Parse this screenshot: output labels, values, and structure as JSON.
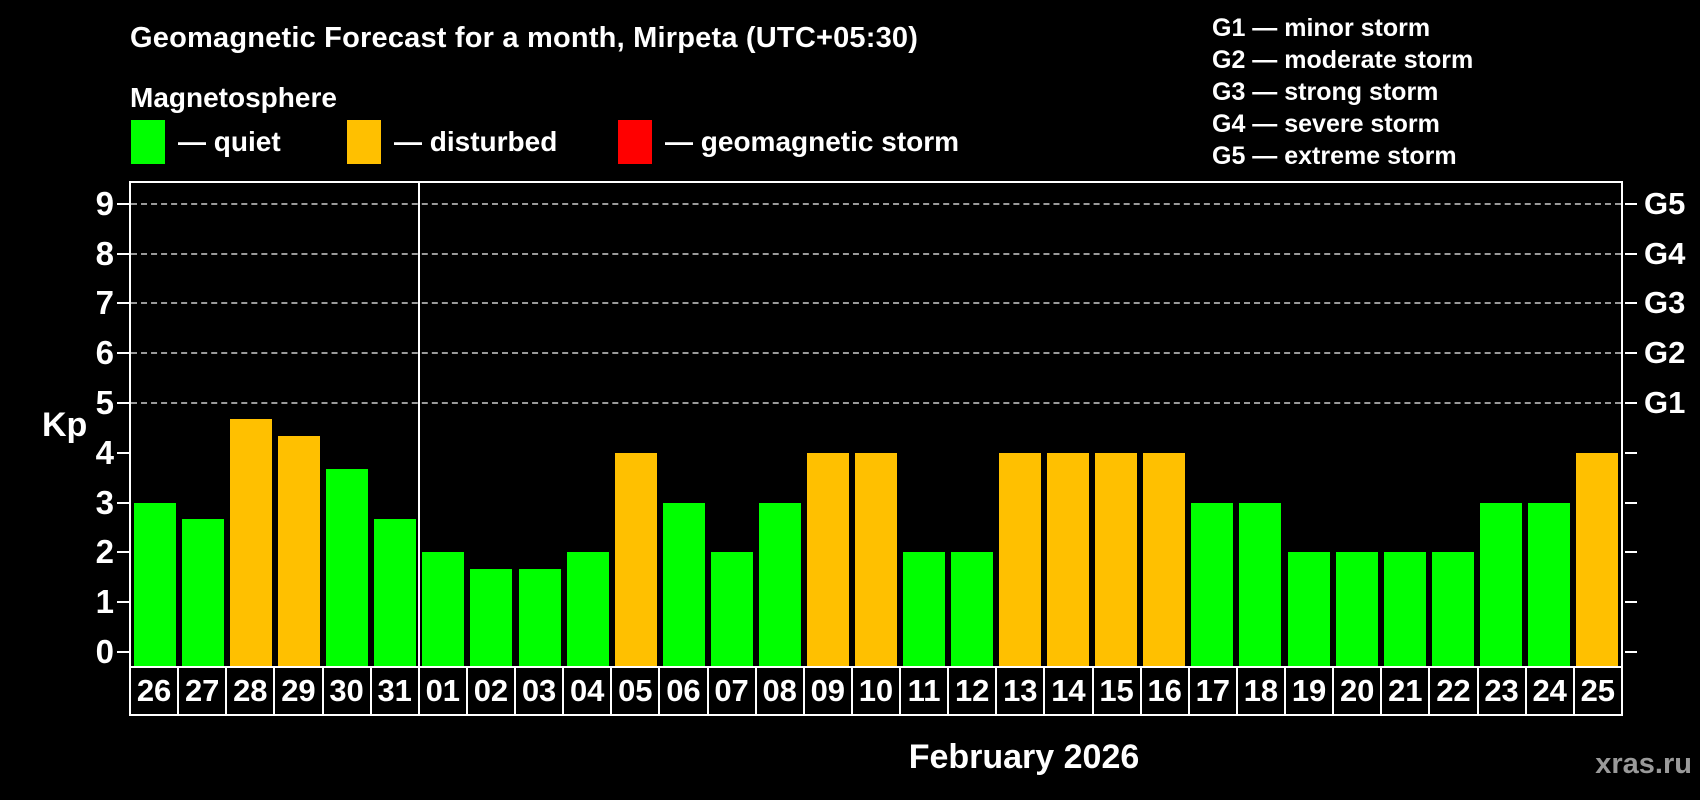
{
  "chart_data": {
    "type": "bar",
    "title": "Geomagnetic Forecast for a month, Mirpeta (UTC+05:30)",
    "subtitle": "Magnetosphere",
    "ylabel": "Kp",
    "xlabel": "February 2026",
    "watermark": "xras.ru",
    "ylim": [
      0,
      9.5
    ],
    "yticks": [
      0,
      1,
      2,
      3,
      4,
      5,
      6,
      7,
      8,
      9
    ],
    "grid": "horizontal dashed lines at Kp 5-9 only",
    "legend_position": "top-left",
    "legend": [
      {
        "status": "quiet",
        "label": "— quiet",
        "color": "#00ff00"
      },
      {
        "status": "disturbed",
        "label": "— disturbed",
        "color": "#ffc000"
      },
      {
        "status": "storm",
        "label": "— geomagnetic storm",
        "color": "#ff0000"
      }
    ],
    "g_scale_legend": [
      "G1 — minor storm",
      "G2 — moderate storm",
      "G3 — strong storm",
      "G4 — severe storm",
      "G5 — extreme storm"
    ],
    "right_axis_labels": [
      {
        "label": "G1",
        "kp": 5
      },
      {
        "label": "G2",
        "kp": 6
      },
      {
        "label": "G3",
        "kp": 7
      },
      {
        "label": "G4",
        "kp": 8
      },
      {
        "label": "G5",
        "kp": 9
      }
    ],
    "month_separator_after_category": "31",
    "categories": [
      "26",
      "27",
      "28",
      "29",
      "30",
      "31",
      "01",
      "02",
      "03",
      "04",
      "05",
      "06",
      "07",
      "08",
      "09",
      "10",
      "11",
      "12",
      "13",
      "14",
      "15",
      "16",
      "17",
      "18",
      "19",
      "20",
      "21",
      "22",
      "23",
      "24",
      "25"
    ],
    "series": [
      {
        "name": "Kp forecast",
        "values": [
          3.0,
          2.67,
          4.67,
          4.33,
          3.67,
          2.67,
          2.0,
          1.67,
          1.67,
          2.0,
          4.0,
          3.0,
          2.0,
          3.0,
          4.0,
          4.0,
          2.0,
          2.0,
          4.0,
          4.0,
          4.0,
          4.0,
          3.0,
          3.0,
          2.0,
          2.0,
          2.0,
          2.0,
          3.0,
          3.0,
          4.0
        ],
        "statuses": [
          "quiet",
          "quiet",
          "disturbed",
          "disturbed",
          "quiet",
          "quiet",
          "quiet",
          "quiet",
          "quiet",
          "quiet",
          "disturbed",
          "quiet",
          "quiet",
          "quiet",
          "disturbed",
          "disturbed",
          "quiet",
          "quiet",
          "disturbed",
          "disturbed",
          "disturbed",
          "disturbed",
          "quiet",
          "quiet",
          "quiet",
          "quiet",
          "quiet",
          "quiet",
          "quiet",
          "quiet",
          "disturbed"
        ]
      }
    ]
  },
  "colors": {
    "background": "#000000",
    "axis": "#ffffff",
    "gridline": "#9a9a9a",
    "text": "#ffffff",
    "watermark_text": "#9a9a9a",
    "quiet": "#00ff00",
    "disturbed": "#ffc000",
    "storm": "#ff0000"
  }
}
